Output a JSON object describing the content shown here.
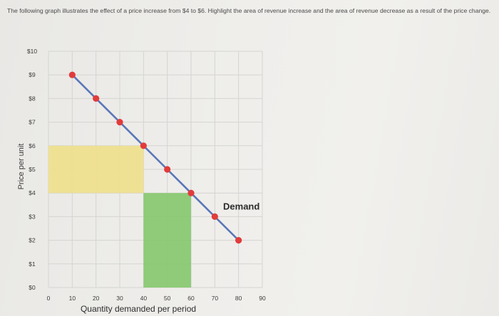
{
  "question": {
    "text": "The following graph illustrates the effect of a price increase from $4 to $6. Highlight the area of revenue increase and the area of revenue decrease as a result of the price change."
  },
  "chart_data": {
    "type": "line",
    "title": "",
    "xlabel": "Quantity demanded per period",
    "ylabel": "Price per unit",
    "xlim": [
      0,
      90
    ],
    "ylim": [
      0,
      10
    ],
    "x_ticks": [
      {
        "value": 0,
        "label": "0"
      },
      {
        "value": 10,
        "label": "10"
      },
      {
        "value": 20,
        "label": "20"
      },
      {
        "value": 30,
        "label": "30"
      },
      {
        "value": 40,
        "label": "40"
      },
      {
        "value": 50,
        "label": "50"
      },
      {
        "value": 60,
        "label": "60"
      },
      {
        "value": 70,
        "label": "70"
      },
      {
        "value": 80,
        "label": "80"
      },
      {
        "value": 90,
        "label": "90"
      }
    ],
    "y_ticks": [
      {
        "value": 0,
        "label": "$0"
      },
      {
        "value": 1,
        "label": "$1"
      },
      {
        "value": 2,
        "label": "$2"
      },
      {
        "value": 3,
        "label": "$3"
      },
      {
        "value": 4,
        "label": "$4"
      },
      {
        "value": 5,
        "label": "$5"
      },
      {
        "value": 6,
        "label": "$6"
      },
      {
        "value": 7,
        "label": "$7"
      },
      {
        "value": 8,
        "label": "$8"
      },
      {
        "value": 9,
        "label": "$9"
      },
      {
        "value": 10,
        "label": "$10"
      }
    ],
    "grid": true,
    "series": [
      {
        "label": "Demand",
        "color": "#5a77b8",
        "marker_color": "#e23b3b",
        "points": [
          {
            "x": 10,
            "y": 9
          },
          {
            "x": 20,
            "y": 8
          },
          {
            "x": 30,
            "y": 7
          },
          {
            "x": 40,
            "y": 6
          },
          {
            "x": 50,
            "y": 5
          },
          {
            "x": 60,
            "y": 4
          },
          {
            "x": 70,
            "y": 3
          },
          {
            "x": 80,
            "y": 2
          }
        ]
      }
    ],
    "highlights": [
      {
        "role": "revenue increase",
        "color": "#efe08c",
        "x0": 0,
        "x1": 40,
        "y0": 4,
        "y1": 6
      },
      {
        "role": "revenue decrease",
        "color": "#87c86f",
        "x0": 40,
        "x1": 60,
        "y0": 0,
        "y1": 4
      }
    ]
  }
}
